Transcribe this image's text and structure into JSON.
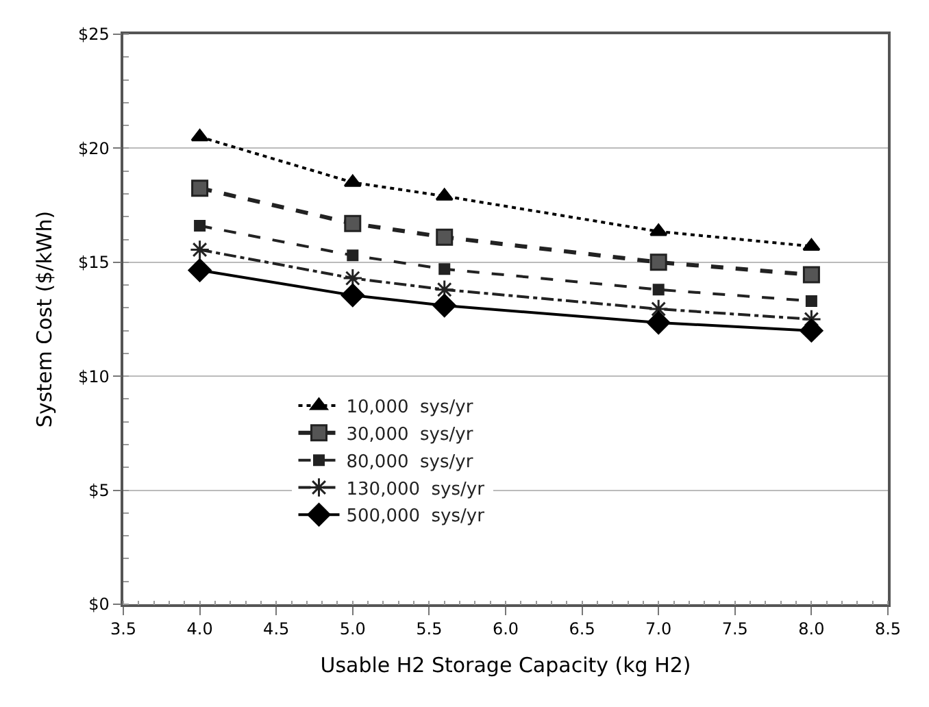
{
  "chart_data": {
    "type": "line",
    "xlabel": "Usable H2 Storage Capacity (kg H2)",
    "ylabel": "System Cost ($/kWh)",
    "x": [
      4.0,
      5.0,
      5.6,
      7.0,
      8.0
    ],
    "series": [
      {
        "name": "10,000  sys/yr",
        "color": "#000000",
        "marker": "triangle",
        "line_style": "dotted",
        "values": [
          20.5,
          18.5,
          17.9,
          16.35,
          15.7
        ]
      },
      {
        "name": "30,000  sys/yr",
        "color": "#222222",
        "marker": "square",
        "line_style": "dashed",
        "values": [
          18.25,
          16.7,
          16.1,
          15.0,
          14.45
        ]
      },
      {
        "name": "80,000  sys/yr",
        "color": "#222222",
        "marker": "square",
        "line_style": "dashed",
        "values": [
          16.6,
          15.3,
          14.7,
          13.8,
          13.3
        ]
      },
      {
        "name": "130,000  sys/yr",
        "color": "#222222",
        "marker": "cross",
        "line_style": "dashdot",
        "values": [
          15.55,
          14.3,
          13.8,
          12.95,
          12.5
        ]
      },
      {
        "name": "500,000  sys/yr",
        "color": "#000000",
        "marker": "diamond",
        "line_style": "solid",
        "values": [
          14.65,
          13.55,
          13.1,
          12.35,
          12.0
        ]
      }
    ],
    "xlim": [
      3.5,
      8.5
    ],
    "xticks": [
      {
        "value": 3.5,
        "label": "3.5"
      },
      {
        "value": 4.0,
        "label": "4.0"
      },
      {
        "value": 4.5,
        "label": "4.5"
      },
      {
        "value": 5.0,
        "label": "5.0"
      },
      {
        "value": 5.5,
        "label": "5.5"
      },
      {
        "value": 6.0,
        "label": "6.0"
      },
      {
        "value": 6.5,
        "label": "6.5"
      },
      {
        "value": 7.0,
        "label": "7.0"
      },
      {
        "value": 7.5,
        "label": "7.5"
      },
      {
        "value": 8.0,
        "label": "8.0"
      },
      {
        "value": 8.5,
        "label": "8.5"
      }
    ],
    "ylim": [
      0,
      25
    ],
    "yticks": [
      {
        "value": 0,
        "label": "$0"
      },
      {
        "value": 5,
        "label": "$5"
      },
      {
        "value": 10,
        "label": "$10"
      },
      {
        "value": 15,
        "label": "$15"
      },
      {
        "value": 20,
        "label": "$20"
      },
      {
        "value": 25,
        "label": "$25"
      }
    ],
    "grid": "y",
    "legend": "bottom left"
  }
}
